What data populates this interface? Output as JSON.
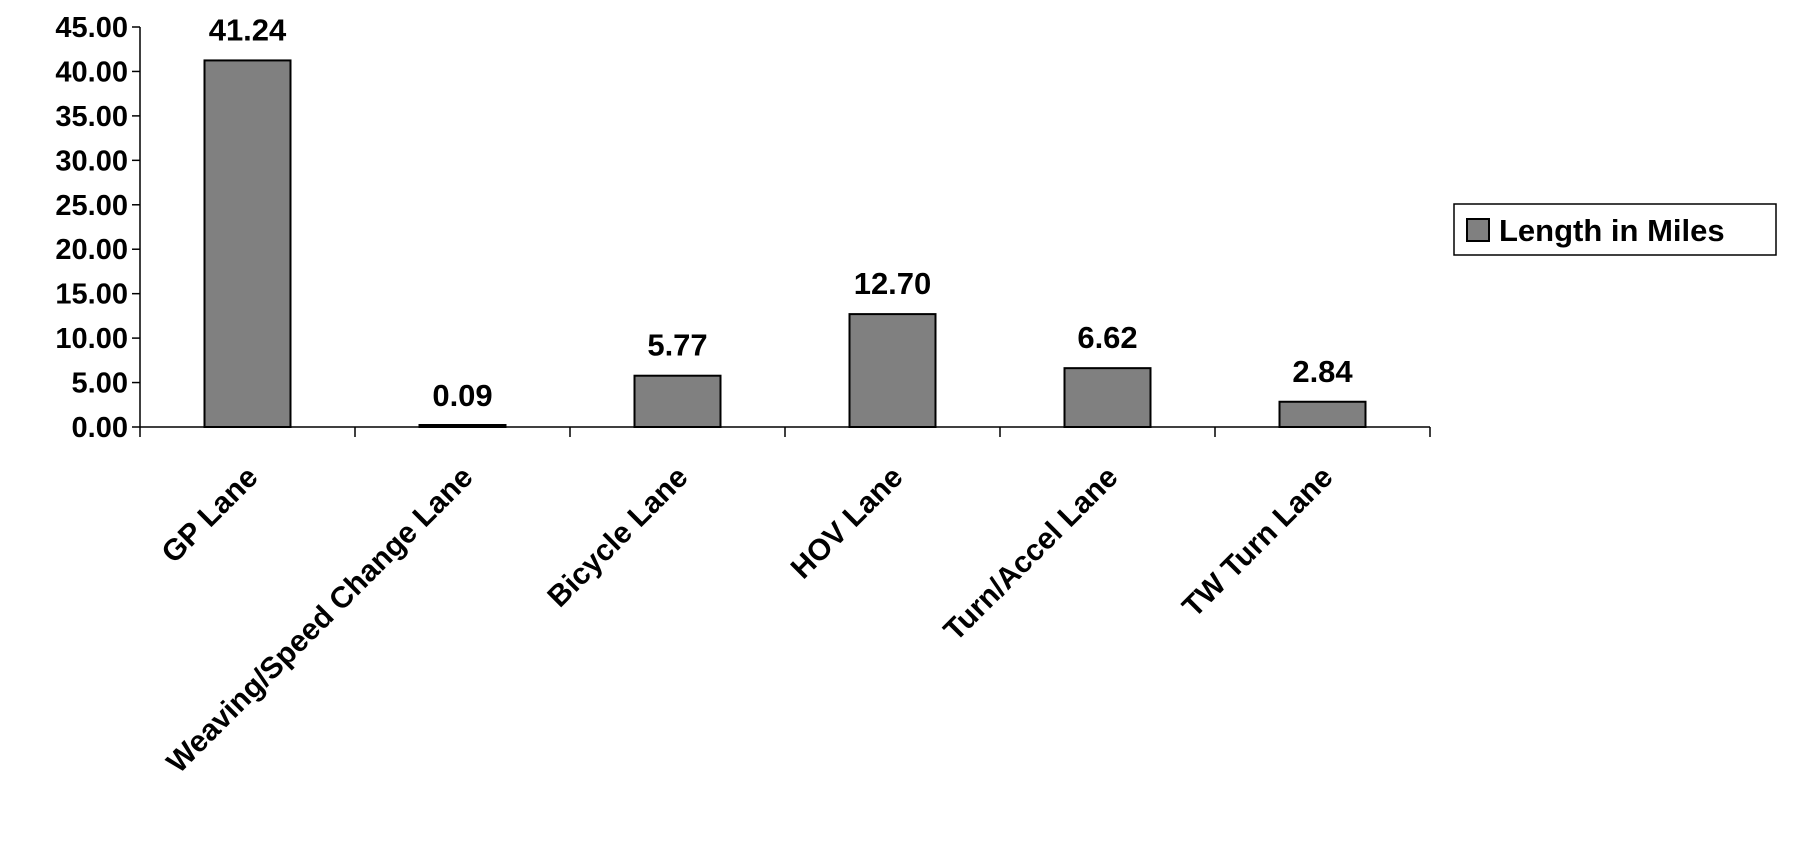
{
  "chart_data": {
    "type": "bar",
    "categories": [
      "GP Lane",
      "Weaving/Speed Change Lane",
      "Bicycle Lane",
      "HOV Lane",
      "Turn/Accel Lane",
      "TW Turn Lane"
    ],
    "series": [
      {
        "name": "Length in Miles",
        "values": [
          41.24,
          0.09,
          5.77,
          12.7,
          6.62,
          2.84
        ],
        "value_labels": [
          "41.24",
          "0.09",
          "5.77",
          "12.70",
          "6.62",
          "2.84"
        ],
        "color": "#808080"
      }
    ],
    "y_ticks": [
      "0.00",
      "5.00",
      "10.00",
      "15.00",
      "20.00",
      "25.00",
      "30.00",
      "35.00",
      "40.00",
      "45.00"
    ],
    "ylim": [
      0,
      45
    ],
    "title": "",
    "xlabel": "",
    "ylabel": "",
    "grid": false,
    "legend_position": "right"
  }
}
